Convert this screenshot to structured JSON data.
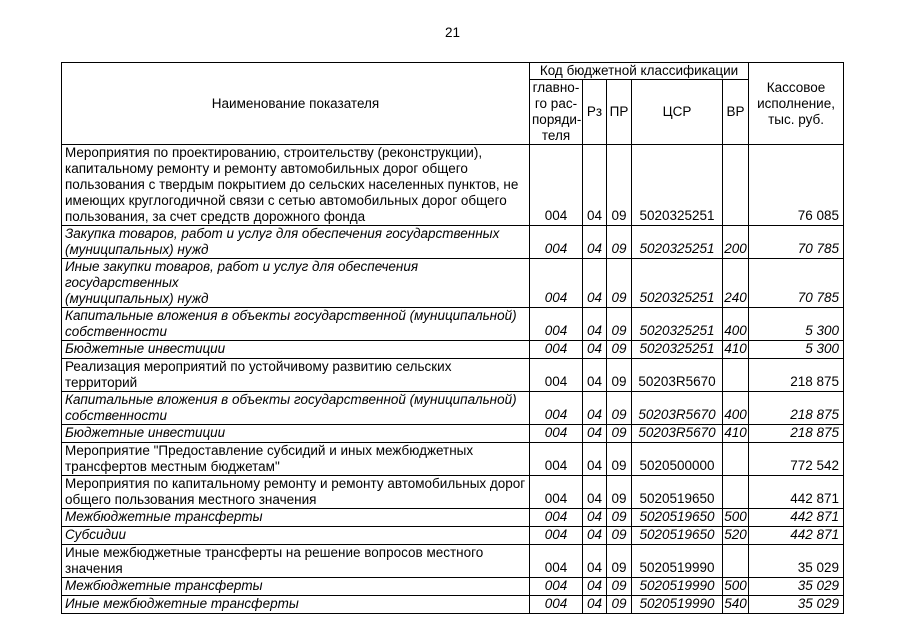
{
  "page": {
    "number": "21"
  },
  "table": {
    "header": {
      "name_col": "Наименование показателя",
      "code_group": "Код бюджетной классификации",
      "code_cols": [
        "главно-\nго рас-\nпоряди-\nтеля",
        "Рз",
        "ПР",
        "ЦСР",
        "ВР"
      ],
      "cash_col": "Кассовое\nисполнение,\nтыс. руб."
    },
    "rows": [
      {
        "name": "Мероприятия по проектированию, строительству (реконструкции),\nкапитальному ремонту и ремонту автомобильных дорог общего\nпользования с твердым покрытием до сельских населенных пунктов, не\nимеющих круглогодичной связи с сетью автомобильных дорог общего\nпользования, за счет средств дорожного фонда",
        "italic": false,
        "grbs": "004",
        "rz": "04",
        "pr": "09",
        "csr": "5020325251",
        "vr": "",
        "amount": "76 085"
      },
      {
        "name": "Закупка товаров, работ и услуг для обеспечения государственных\n(муниципальных) нужд",
        "italic": true,
        "grbs": "004",
        "rz": "04",
        "pr": "09",
        "csr": "5020325251",
        "vr": "200",
        "amount": "70 785"
      },
      {
        "name": "Иные закупки товаров, работ и услуг для обеспечения государственных\n(муниципальных) нужд",
        "italic": true,
        "grbs": "004",
        "rz": "04",
        "pr": "09",
        "csr": "5020325251",
        "vr": "240",
        "amount": "70 785"
      },
      {
        "name": "Капитальные вложения в объекты государственной (муниципальной)\nсобственности",
        "italic": true,
        "grbs": "004",
        "rz": "04",
        "pr": "09",
        "csr": "5020325251",
        "vr": "400",
        "amount": "5 300"
      },
      {
        "name": "Бюджетные инвестиции",
        "italic": true,
        "grbs": "004",
        "rz": "04",
        "pr": "09",
        "csr": "5020325251",
        "vr": "410",
        "amount": "5 300"
      },
      {
        "name": "Реализация мероприятий по устойчивому развитию сельских территорий",
        "italic": false,
        "grbs": "004",
        "rz": "04",
        "pr": "09",
        "csr": "50203R5670",
        "vr": "",
        "amount": "218 875"
      },
      {
        "name": "Капитальные вложения в объекты государственной (муниципальной)\nсобственности",
        "italic": true,
        "grbs": "004",
        "rz": "04",
        "pr": "09",
        "csr": "50203R5670",
        "vr": "400",
        "amount": "218 875"
      },
      {
        "name": "Бюджетные инвестиции",
        "italic": true,
        "grbs": "004",
        "rz": "04",
        "pr": "09",
        "csr": "50203R5670",
        "vr": "410",
        "amount": "218 875"
      },
      {
        "name": "Мероприятие \"Предоставление субсидий и иных межбюджетных\nтрансфертов местным бюджетам\"",
        "italic": false,
        "grbs": "004",
        "rz": "04",
        "pr": "09",
        "csr": "5020500000",
        "vr": "",
        "amount": "772 542"
      },
      {
        "name": "Мероприятия по капитальному ремонту и ремонту автомобильных дорог\nобщего пользования местного значения",
        "italic": false,
        "grbs": "004",
        "rz": "04",
        "pr": "09",
        "csr": "5020519650",
        "vr": "",
        "amount": "442 871"
      },
      {
        "name": "Межбюджетные трансферты",
        "italic": true,
        "grbs": "004",
        "rz": "04",
        "pr": "09",
        "csr": "5020519650",
        "vr": "500",
        "amount": "442 871"
      },
      {
        "name": "Субсидии",
        "italic": true,
        "grbs": "004",
        "rz": "04",
        "pr": "09",
        "csr": "5020519650",
        "vr": "520",
        "amount": "442 871"
      },
      {
        "name": "Иные межбюджетные трансферты на решение вопросов местного\nзначения",
        "italic": false,
        "grbs": "004",
        "rz": "04",
        "pr": "09",
        "csr": "5020519990",
        "vr": "",
        "amount": "35 029"
      },
      {
        "name": "Межбюджетные трансферты",
        "italic": true,
        "grbs": "004",
        "rz": "04",
        "pr": "09",
        "csr": "5020519990",
        "vr": "500",
        "amount": "35 029"
      },
      {
        "name": "Иные межбюджетные трансферты",
        "italic": true,
        "grbs": "004",
        "rz": "04",
        "pr": "09",
        "csr": "5020519990",
        "vr": "540",
        "amount": "35 029"
      }
    ]
  }
}
